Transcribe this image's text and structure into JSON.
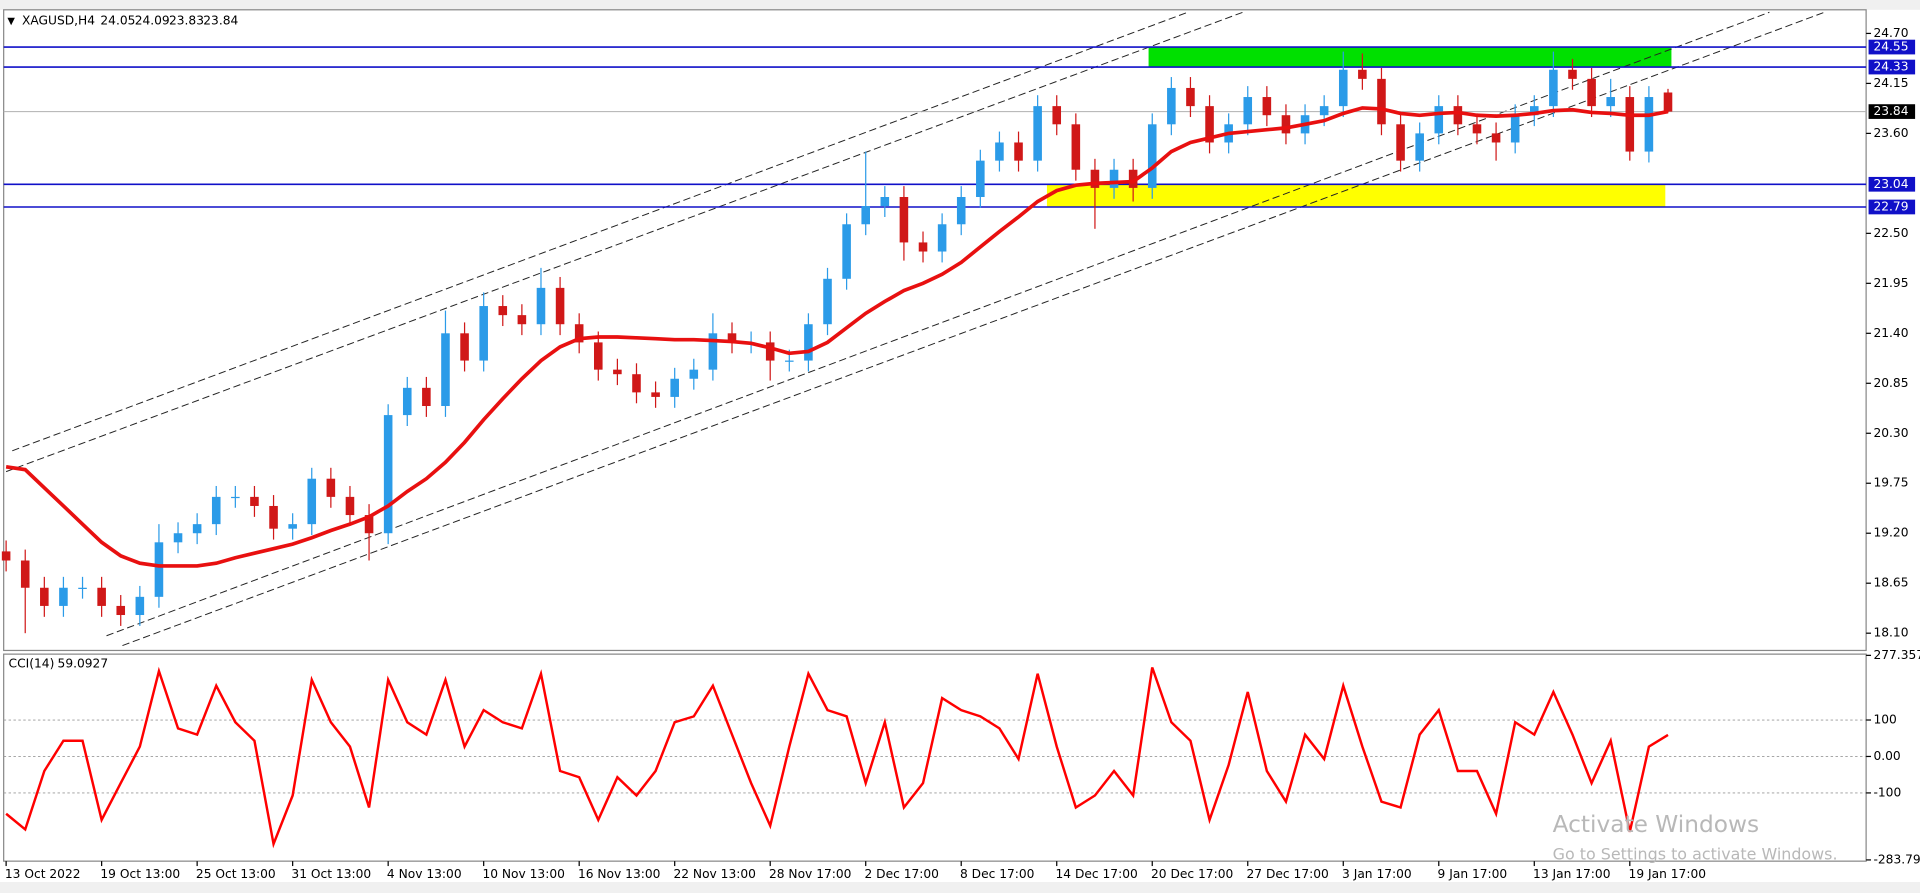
{
  "chart_data": [
    {
      "type": "candlestick",
      "symbol": "XAGUSD,H4",
      "categories": [
        "13 Oct 2022",
        null,
        null,
        null,
        null,
        "19 Oct 13:00",
        null,
        null,
        null,
        null,
        "25 Oct 13:00",
        null,
        null,
        null,
        null,
        "31 Oct 13:00",
        null,
        null,
        null,
        null,
        "4 Nov 13:00",
        null,
        null,
        null,
        null,
        "10 Nov 13:00",
        null,
        null,
        null,
        null,
        "16 Nov 13:00",
        null,
        null,
        null,
        null,
        "22 Nov 13:00",
        null,
        null,
        null,
        null,
        "28 Nov 17:00",
        null,
        null,
        null,
        null,
        "2 Dec 17:00",
        null,
        null,
        null,
        null,
        "8 Dec 17:00",
        null,
        null,
        null,
        null,
        "14 Dec 17:00",
        null,
        null,
        null,
        null,
        "20 Dec 17:00",
        null,
        null,
        null,
        null,
        "27 Dec 17:00",
        null,
        null,
        null,
        null,
        "3 Jan 17:00",
        null,
        null,
        null,
        null,
        "9 Jan 17:00",
        null,
        null,
        null,
        null,
        "13 Jan 17:00",
        null,
        null,
        null,
        null,
        "19 Jan 17:00",
        null,
        null
      ],
      "open": [
        19.0,
        18.9,
        18.6,
        18.4,
        18.6,
        18.6,
        18.4,
        18.3,
        18.5,
        19.1,
        19.2,
        19.3,
        19.6,
        19.6,
        19.5,
        19.25,
        19.3,
        19.8,
        19.6,
        19.4,
        19.2,
        20.5,
        20.8,
        20.6,
        21.4,
        21.1,
        21.7,
        21.6,
        21.5,
        21.9,
        21.5,
        21.3,
        21.0,
        20.95,
        20.75,
        20.7,
        20.9,
        21.0,
        21.4,
        21.3,
        21.3,
        21.1,
        21.1,
        21.5,
        22.0,
        22.6,
        22.8,
        22.9,
        22.4,
        22.3,
        22.6,
        22.9,
        23.3,
        23.5,
        23.3,
        23.9,
        23.7,
        23.2,
        23.0,
        23.2,
        23.0,
        23.7,
        24.1,
        23.9,
        23.5,
        23.7,
        24.0,
        23.8,
        23.6,
        23.8,
        23.9,
        24.3,
        24.2,
        23.7,
        23.3,
        23.6,
        23.9,
        23.7,
        23.6,
        23.5,
        23.8,
        23.9,
        24.3,
        24.2,
        23.9,
        24.0,
        23.4,
        24.05
      ],
      "high": [
        19.12,
        19.02,
        18.72,
        18.72,
        18.72,
        18.72,
        18.52,
        18.62,
        19.3,
        19.32,
        19.42,
        19.72,
        19.72,
        19.72,
        19.62,
        19.42,
        19.92,
        19.92,
        19.72,
        19.52,
        20.62,
        20.92,
        20.92,
        21.65,
        21.52,
        21.85,
        21.82,
        21.72,
        22.12,
        22.02,
        21.62,
        21.42,
        21.12,
        21.07,
        20.87,
        21.02,
        21.12,
        21.62,
        21.52,
        21.42,
        21.42,
        21.22,
        21.62,
        22.12,
        22.72,
        23.4,
        23.02,
        23.02,
        22.52,
        22.72,
        23.02,
        23.42,
        23.62,
        23.62,
        24.02,
        24.02,
        23.82,
        23.32,
        23.32,
        23.32,
        23.82,
        24.22,
        24.22,
        24.02,
        23.82,
        24.12,
        24.12,
        23.92,
        23.92,
        24.02,
        24.5,
        24.48,
        24.32,
        23.82,
        23.72,
        24.02,
        24.02,
        23.82,
        23.72,
        23.92,
        24.02,
        24.5,
        24.42,
        24.32,
        24.2,
        24.12,
        24.12,
        24.09
      ],
      "low": [
        18.78,
        18.1,
        18.28,
        18.28,
        18.48,
        18.28,
        18.18,
        18.18,
        18.38,
        18.98,
        19.08,
        19.18,
        19.48,
        19.38,
        19.13,
        19.13,
        19.18,
        19.48,
        19.28,
        18.9,
        19.08,
        20.38,
        20.48,
        20.48,
        20.98,
        20.98,
        21.48,
        21.38,
        21.38,
        21.38,
        21.18,
        20.88,
        20.83,
        20.63,
        20.58,
        20.58,
        20.78,
        20.88,
        21.18,
        21.18,
        20.88,
        20.98,
        20.98,
        21.38,
        21.88,
        22.48,
        22.68,
        22.2,
        22.18,
        22.18,
        22.48,
        22.78,
        23.18,
        23.18,
        23.18,
        23.58,
        23.08,
        22.55,
        22.88,
        22.85,
        22.88,
        23.58,
        23.78,
        23.38,
        23.38,
        23.58,
        23.68,
        23.48,
        23.48,
        23.68,
        23.78,
        24.08,
        23.58,
        23.18,
        23.18,
        23.48,
        23.58,
        23.48,
        23.3,
        23.38,
        23.68,
        23.78,
        24.08,
        23.78,
        23.78,
        23.3,
        23.28,
        23.83
      ],
      "close": [
        18.9,
        18.6,
        18.4,
        18.6,
        18.6,
        18.4,
        18.3,
        18.5,
        19.1,
        19.2,
        19.3,
        19.6,
        19.6,
        19.5,
        19.25,
        19.3,
        19.8,
        19.6,
        19.4,
        19.2,
        20.5,
        20.8,
        20.6,
        21.4,
        21.1,
        21.7,
        21.6,
        21.5,
        21.9,
        21.5,
        21.3,
        21.0,
        20.95,
        20.75,
        20.7,
        20.9,
        21.0,
        21.4,
        21.3,
        21.3,
        21.1,
        21.1,
        21.5,
        22.0,
        22.6,
        22.8,
        22.9,
        22.4,
        22.3,
        22.6,
        22.9,
        23.3,
        23.5,
        23.3,
        23.9,
        23.7,
        23.2,
        23.0,
        23.2,
        23.0,
        23.7,
        24.1,
        23.9,
        23.5,
        23.7,
        24.0,
        23.8,
        23.6,
        23.8,
        23.9,
        24.3,
        24.2,
        23.7,
        23.3,
        23.6,
        23.9,
        23.7,
        23.6,
        23.5,
        23.8,
        23.9,
        24.3,
        24.2,
        23.9,
        24.0,
        23.4,
        24.0,
        23.84
      ],
      "up_color": "#2b9be8",
      "down_color": "#d01818",
      "ma": {
        "color": "#e81010",
        "values": [
          19.93,
          19.9,
          19.7,
          19.5,
          19.3,
          19.1,
          18.95,
          18.87,
          18.84,
          18.84,
          18.84,
          18.87,
          18.93,
          18.98,
          19.03,
          19.08,
          19.15,
          19.23,
          19.3,
          19.38,
          19.5,
          19.66,
          19.8,
          19.98,
          20.2,
          20.45,
          20.68,
          20.9,
          21.1,
          21.25,
          21.34,
          21.36,
          21.36,
          21.35,
          21.34,
          21.33,
          21.33,
          21.32,
          21.31,
          21.29,
          21.24,
          21.18,
          21.2,
          21.3,
          21.46,
          21.62,
          21.75,
          21.87,
          21.95,
          22.05,
          22.18,
          22.35,
          22.52,
          22.68,
          22.85,
          22.97,
          23.03,
          23.05,
          23.06,
          23.07,
          23.22,
          23.4,
          23.5,
          23.55,
          23.6,
          23.62,
          23.64,
          23.66,
          23.7,
          23.74,
          23.82,
          23.88,
          23.87,
          23.82,
          23.8,
          23.82,
          23.83,
          23.8,
          23.79,
          23.8,
          23.82,
          23.85,
          23.86,
          23.83,
          23.82,
          23.8,
          23.8,
          23.84
        ]
      },
      "ylim": [
        17.91,
        24.96
      ],
      "yticks": [
        {
          "value": 18.1,
          "label": "18.10"
        },
        18.65,
        {
          "value": 19.2,
          "label": "19.20"
        },
        19.75,
        {
          "value": 20.3,
          "label": "20.30"
        },
        20.85,
        {
          "value": 21.4,
          "label": "21.40"
        },
        21.95,
        {
          "value": 22.5,
          "label": "22.50"
        },
        {
          "value": 23.6,
          "label": "23.60"
        },
        24.15,
        {
          "value": 24.7,
          "label": "24.70"
        }
      ],
      "levels": [
        {
          "value": 24.55,
          "color": "#1010c8"
        },
        {
          "value": 24.33,
          "color": "#1010c8"
        },
        {
          "value": 23.04,
          "color": "#1010c8"
        },
        {
          "value": 22.79,
          "color": "#1010c8"
        }
      ],
      "zone_colors": [
        "#00e000",
        "#ffff00"
      ]
    },
    {
      "type": "line",
      "title": "CCI(14)",
      "color": "#ff0000",
      "values": [
        -157,
        -200,
        -40,
        43,
        43,
        -174,
        -73,
        27,
        234,
        77,
        60,
        194,
        94,
        43,
        -240,
        -107,
        210,
        94,
        27,
        -140,
        210,
        94,
        60,
        210,
        27,
        127,
        94,
        77,
        227,
        -40,
        -57,
        -174,
        -57,
        -107,
        -40,
        94,
        110,
        194,
        60,
        -73,
        -190,
        27,
        227,
        127,
        110,
        -73,
        94,
        -140,
        -73,
        160,
        127,
        110,
        77,
        -7,
        227,
        27,
        -140,
        -107,
        -40,
        -107,
        244,
        94,
        43,
        -174,
        -23,
        177,
        -40,
        -124,
        60,
        -7,
        194,
        27,
        -124,
        -140,
        60,
        127,
        -40,
        -40,
        -157,
        94,
        60,
        177,
        60,
        -73,
        43,
        -207,
        27,
        59.0927
      ],
      "ylim": [
        -283.796,
        277.357
      ],
      "yticks": [
        277.357,
        100,
        {
          "value": 0,
          "label": "0.00"
        },
        -100,
        -283.796
      ]
    }
  ],
  "watermark": {
    "title": "Activate Windows",
    "subtitle": "Go to Settings to activate Windows."
  }
}
